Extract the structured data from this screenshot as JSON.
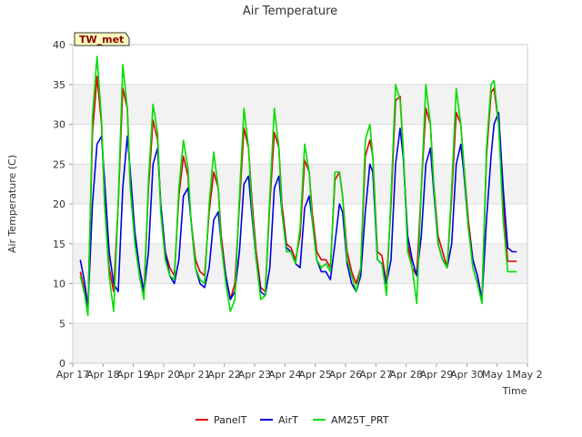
{
  "chart_data": {
    "type": "line",
    "title": "Air Temperature",
    "xlabel": "Time",
    "ylabel": "Air Temperature (C)",
    "badge": "TW_met",
    "ylim": [
      0,
      40
    ],
    "yticks": [
      0,
      5,
      10,
      15,
      20,
      25,
      30,
      35,
      40
    ],
    "xlim": [
      0,
      15
    ],
    "xtick_labels": [
      "Apr 17",
      "Apr 18",
      "Apr 19",
      "Apr 20",
      "Apr 21",
      "Apr 22",
      "Apr 23",
      "Apr 24",
      "Apr 25",
      "Apr 26",
      "Apr 27",
      "Apr 28",
      "Apr 29",
      "Apr 30",
      "May 1",
      "May 2"
    ],
    "grid": true,
    "legend_position": "bottom",
    "series": [
      {
        "name": "PanelT",
        "color": "#dd0000",
        "x": [
          0.25,
          0.4,
          0.5,
          0.65,
          0.8,
          0.95,
          1.05,
          1.2,
          1.35,
          1.5,
          1.65,
          1.8,
          1.9,
          2.05,
          2.2,
          2.35,
          2.5,
          2.65,
          2.8,
          2.9,
          3.05,
          3.2,
          3.35,
          3.5,
          3.65,
          3.8,
          3.9,
          4.05,
          4.2,
          4.35,
          4.5,
          4.65,
          4.8,
          4.9,
          5.05,
          5.2,
          5.35,
          5.5,
          5.65,
          5.8,
          5.9,
          6.05,
          6.2,
          6.35,
          6.5,
          6.65,
          6.8,
          6.9,
          7.05,
          7.2,
          7.35,
          7.5,
          7.65,
          7.8,
          7.9,
          8.05,
          8.2,
          8.35,
          8.5,
          8.65,
          8.8,
          8.9,
          9.05,
          9.2,
          9.35,
          9.5,
          9.65,
          9.8,
          9.9,
          10.05,
          10.2,
          10.35,
          10.5,
          10.65,
          10.8,
          10.9,
          11.05,
          11.2,
          11.35,
          11.5,
          11.65,
          11.8,
          11.9,
          12.05,
          12.2,
          12.35,
          12.5,
          12.65,
          12.8,
          12.9,
          13.05,
          13.2,
          13.35,
          13.5,
          13.65,
          13.8,
          13.9,
          14.05,
          14.2,
          14.35,
          14.5,
          14.65
        ],
        "y": [
          11.5,
          9.0,
          7.0,
          29.0,
          36.0,
          30.0,
          20.0,
          12.0,
          9.0,
          20.0,
          34.5,
          32.0,
          22.0,
          15.5,
          12.0,
          9.0,
          22.0,
          30.5,
          28.0,
          20.0,
          14.0,
          12.0,
          11.0,
          21.0,
          26.0,
          23.5,
          18.0,
          13.0,
          11.5,
          11.0,
          19.0,
          24.0,
          22.0,
          16.0,
          11.0,
          8.0,
          10.0,
          20.0,
          29.5,
          27.0,
          21.0,
          14.0,
          9.5,
          9.0,
          20.0,
          29.0,
          27.0,
          20.0,
          15.0,
          14.5,
          13.0,
          16.0,
          25.5,
          24.0,
          19.0,
          14.0,
          13.0,
          13.0,
          12.0,
          23.0,
          24.0,
          21.0,
          14.0,
          11.5,
          10.0,
          12.0,
          26.0,
          28.0,
          26.0,
          14.0,
          13.5,
          10.0,
          20.0,
          33.0,
          33.5,
          27.0,
          15.0,
          12.0,
          11.0,
          22.0,
          32.0,
          30.0,
          23.0,
          16.0,
          14.0,
          12.0,
          21.0,
          31.5,
          30.0,
          25.0,
          18.0,
          13.0,
          11.0,
          8.0,
          26.0,
          34.0,
          34.5,
          30.0,
          20.0,
          12.8,
          12.8,
          12.8
        ]
      },
      {
        "name": "AirT",
        "color": "#0000dd",
        "x": [
          0.25,
          0.4,
          0.5,
          0.65,
          0.8,
          0.95,
          1.05,
          1.2,
          1.35,
          1.5,
          1.65,
          1.8,
          1.9,
          2.05,
          2.2,
          2.35,
          2.5,
          2.65,
          2.8,
          2.9,
          3.05,
          3.2,
          3.35,
          3.5,
          3.65,
          3.8,
          3.9,
          4.05,
          4.2,
          4.35,
          4.5,
          4.65,
          4.8,
          4.9,
          5.05,
          5.2,
          5.35,
          5.5,
          5.65,
          5.8,
          5.9,
          6.05,
          6.2,
          6.35,
          6.5,
          6.65,
          6.8,
          6.9,
          7.05,
          7.2,
          7.35,
          7.5,
          7.65,
          7.8,
          7.9,
          8.05,
          8.2,
          8.35,
          8.5,
          8.65,
          8.8,
          8.9,
          9.05,
          9.2,
          9.35,
          9.5,
          9.65,
          9.8,
          9.9,
          10.05,
          10.2,
          10.35,
          10.5,
          10.65,
          10.8,
          10.9,
          11.05,
          11.2,
          11.35,
          11.5,
          11.65,
          11.8,
          11.9,
          12.05,
          12.2,
          12.35,
          12.5,
          12.65,
          12.8,
          12.9,
          13.05,
          13.2,
          13.35,
          13.5,
          13.65,
          13.8,
          13.9,
          14.05,
          14.2,
          14.35,
          14.5,
          14.65
        ],
        "y": [
          13.0,
          10.0,
          7.0,
          20.0,
          27.5,
          28.5,
          23.0,
          14.0,
          10.0,
          9.0,
          22.0,
          28.5,
          24.0,
          16.5,
          12.0,
          9.0,
          14.0,
          25.0,
          27.0,
          20.0,
          14.0,
          11.0,
          10.0,
          13.0,
          21.0,
          22.0,
          18.0,
          12.0,
          10.0,
          9.5,
          12.0,
          18.0,
          19.0,
          15.0,
          11.0,
          8.0,
          9.0,
          14.0,
          22.5,
          23.5,
          19.0,
          13.0,
          9.0,
          8.5,
          12.0,
          22.0,
          23.5,
          19.0,
          14.5,
          14.0,
          12.5,
          12.0,
          19.5,
          21.0,
          18.0,
          13.0,
          11.5,
          11.5,
          10.5,
          15.0,
          20.0,
          19.0,
          12.5,
          10.0,
          9.0,
          11.0,
          19.0,
          25.0,
          24.0,
          13.0,
          12.5,
          10.0,
          13.0,
          25.0,
          29.5,
          26.0,
          16.0,
          13.0,
          11.0,
          16.0,
          25.0,
          27.0,
          22.0,
          15.0,
          13.0,
          12.0,
          15.0,
          25.0,
          27.5,
          24.0,
          17.0,
          13.0,
          11.0,
          8.0,
          18.0,
          26.0,
          30.0,
          31.5,
          22.0,
          14.5,
          14.0,
          14.0
        ]
      },
      {
        "name": "AM25T_PRT",
        "color": "#00dd00",
        "x": [
          0.25,
          0.4,
          0.5,
          0.65,
          0.8,
          0.95,
          1.05,
          1.2,
          1.35,
          1.5,
          1.65,
          1.8,
          1.9,
          2.05,
          2.2,
          2.35,
          2.5,
          2.65,
          2.8,
          2.9,
          3.05,
          3.2,
          3.35,
          3.5,
          3.65,
          3.8,
          3.9,
          4.05,
          4.2,
          4.35,
          4.5,
          4.65,
          4.8,
          4.9,
          5.05,
          5.2,
          5.35,
          5.5,
          5.65,
          5.8,
          5.9,
          6.05,
          6.2,
          6.35,
          6.5,
          6.65,
          6.8,
          6.9,
          7.05,
          7.2,
          7.35,
          7.5,
          7.65,
          7.8,
          7.9,
          8.05,
          8.2,
          8.35,
          8.5,
          8.65,
          8.8,
          8.9,
          9.05,
          9.2,
          9.35,
          9.5,
          9.65,
          9.8,
          9.9,
          10.05,
          10.2,
          10.35,
          10.5,
          10.65,
          10.8,
          10.9,
          11.05,
          11.2,
          11.35,
          11.5,
          11.65,
          11.8,
          11.9,
          12.05,
          12.2,
          12.35,
          12.5,
          12.65,
          12.8,
          12.9,
          13.05,
          13.2,
          13.35,
          13.5,
          13.65,
          13.8,
          13.9,
          14.05,
          14.2,
          14.35,
          14.5,
          14.65
        ],
        "y": [
          11.0,
          8.5,
          6.0,
          31.0,
          38.5,
          30.5,
          20.0,
          11.0,
          6.5,
          20.0,
          37.5,
          32.0,
          22.0,
          15.0,
          11.0,
          8.0,
          23.0,
          32.5,
          29.0,
          19.0,
          13.0,
          11.0,
          10.5,
          22.0,
          28.0,
          24.5,
          18.0,
          12.0,
          10.5,
          10.0,
          20.0,
          26.5,
          22.0,
          15.0,
          10.0,
          6.5,
          8.0,
          21.0,
          32.0,
          27.0,
          20.0,
          13.0,
          8.0,
          8.5,
          21.0,
          32.0,
          27.0,
          19.0,
          14.0,
          14.0,
          12.5,
          17.0,
          27.5,
          24.0,
          18.0,
          13.0,
          12.0,
          12.5,
          11.5,
          24.0,
          24.0,
          21.0,
          13.0,
          11.0,
          9.0,
          12.0,
          28.0,
          30.0,
          26.0,
          13.0,
          12.5,
          8.5,
          21.0,
          35.0,
          33.0,
          27.0,
          14.0,
          12.0,
          7.5,
          22.0,
          35.0,
          30.0,
          23.0,
          15.0,
          13.0,
          12.0,
          22.0,
          34.5,
          30.0,
          25.0,
          17.0,
          12.0,
          10.0,
          7.5,
          27.0,
          35.0,
          35.5,
          30.0,
          18.0,
          11.5,
          11.5,
          11.5
        ]
      }
    ]
  }
}
